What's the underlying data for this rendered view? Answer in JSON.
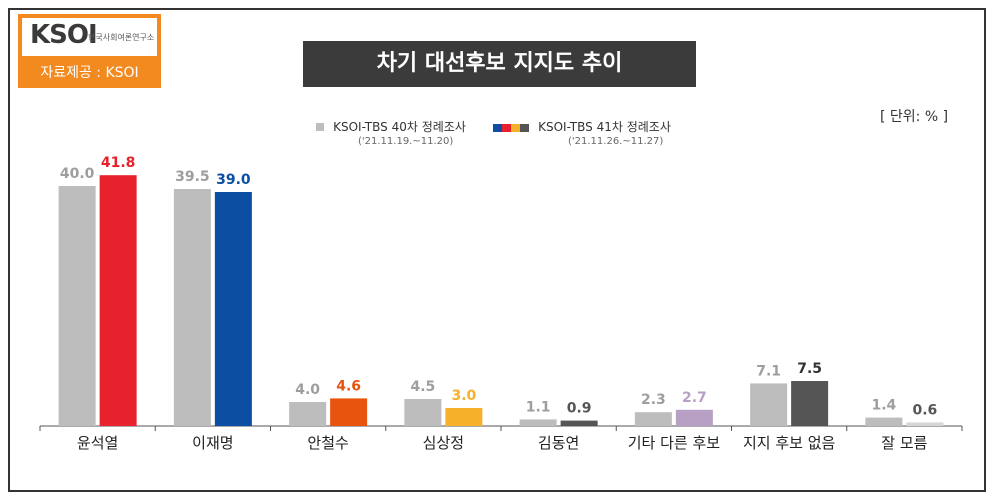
{
  "logo": {
    "mark": "KSOI",
    "subtitle": "한국사회여론연구소",
    "source": "자료제공 : KSOI"
  },
  "title": "차기 대선후보 지지도 추이",
  "unit": "[ 단위: % ]",
  "legend": [
    {
      "label": "KSOI-TBS 40차 정례조사",
      "date": "('21.11.19.~11.20)"
    },
    {
      "label": "KSOI-TBS 41차 정례조사",
      "date": "('21.11.26.~11.27)"
    }
  ],
  "colors": {
    "previous": "#bdbdbd",
    "previous_label": "#9e9e9e",
    "current_bars": [
      "#e8222c",
      "#0b4ea2",
      "#e8530e",
      "#f6b02a",
      "#555555",
      "#b89fc4",
      "#555555",
      "#d6d6d6"
    ],
    "current_labels": [
      "#e8222c",
      "#0b4ea2",
      "#e8530e",
      "#f6b02a",
      "#555555",
      "#b89fc4",
      "#333333",
      "#555555"
    ]
  },
  "chart_data": {
    "type": "bar",
    "categories": [
      "윤석열",
      "이재명",
      "안철수",
      "심상정",
      "김동연",
      "기타 다른 후보",
      "지지 후보 없음",
      "잘 모름"
    ],
    "series": [
      {
        "name": "KSOI-TBS 40차 정례조사",
        "values": [
          40.0,
          39.5,
          4.0,
          4.5,
          1.1,
          2.3,
          7.1,
          1.4
        ]
      },
      {
        "name": "KSOI-TBS 41차 정례조사",
        "values": [
          41.8,
          39.0,
          4.6,
          3.0,
          0.9,
          2.7,
          7.5,
          0.6
        ]
      }
    ],
    "value_labels": [
      [
        "40.0",
        "39.5",
        "4.0",
        "4.5",
        "1.1",
        "2.3",
        "7.1",
        "1.4"
      ],
      [
        "41.8",
        "39.0",
        "4.6",
        "3.0",
        "0.9",
        "2.7",
        "7.5",
        "0.6"
      ]
    ],
    "ylim": [
      0,
      45
    ],
    "grid": false
  }
}
